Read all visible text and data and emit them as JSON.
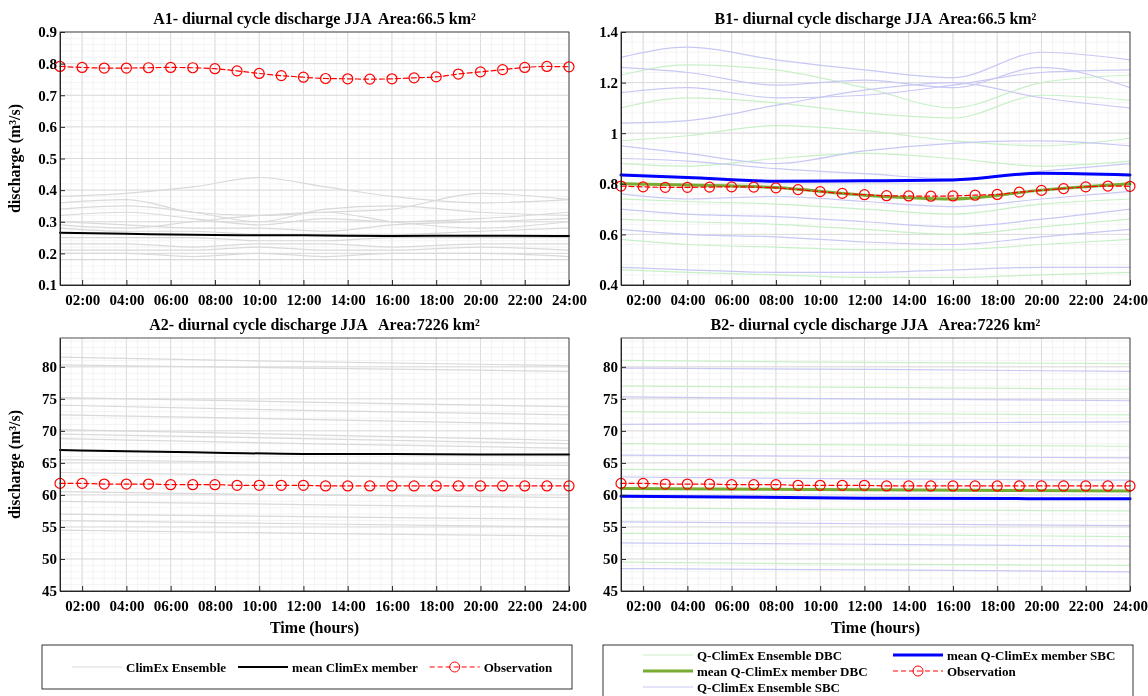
{
  "chart_data": [
    {
      "type": "line",
      "title": "A1- diurnal cycle discharge JJA  Area:66.5 km²",
      "ylabel": "discharge (m³/s)",
      "xlim": [
        1,
        24
      ],
      "ylim": [
        0.1,
        0.9
      ],
      "xticks": [
        {
          "value": 2,
          "label": "02:00"
        },
        {
          "value": 4,
          "label": "04:00"
        },
        {
          "value": 6,
          "label": "06:00"
        },
        {
          "value": 8,
          "label": "08:00"
        },
        {
          "value": 10,
          "label": "10:00"
        },
        {
          "value": 12,
          "label": "12:00"
        },
        {
          "value": 14,
          "label": "14:00"
        },
        {
          "value": 16,
          "label": "16:00"
        },
        {
          "value": 18,
          "label": "18:00"
        },
        {
          "value": 20,
          "label": "20:00"
        },
        {
          "value": 22,
          "label": "22:00"
        },
        {
          "value": 24,
          "label": "24:00"
        }
      ],
      "yticks": [
        0.1,
        0.2,
        0.3,
        0.4,
        0.5,
        0.6,
        0.7,
        0.8,
        0.9
      ],
      "grid": true,
      "legend": false,
      "series": [
        {
          "color": "#d9d9d9",
          "x": [
            1,
            4,
            7,
            10,
            13,
            16,
            20,
            24
          ],
          "values": [
            0.38,
            0.39,
            0.41,
            0.44,
            0.41,
            0.38,
            0.36,
            0.37
          ]
        },
        {
          "color": "#d9d9d9",
          "x": [
            1,
            4,
            7,
            10,
            13,
            16,
            20,
            24
          ],
          "values": [
            0.36,
            0.37,
            0.33,
            0.32,
            0.33,
            0.34,
            0.39,
            0.37
          ]
        },
        {
          "color": "#d9d9d9",
          "x": [
            1,
            4,
            7,
            10,
            13,
            16,
            20,
            24
          ],
          "values": [
            0.34,
            0.35,
            0.33,
            0.3,
            0.34,
            0.35,
            0.33,
            0.32
          ]
        },
        {
          "color": "#d9d9d9",
          "x": [
            1,
            4,
            7,
            10,
            13,
            16,
            20,
            24
          ],
          "values": [
            0.32,
            0.33,
            0.31,
            0.29,
            0.31,
            0.3,
            0.31,
            0.33
          ]
        },
        {
          "color": "#d9d9d9",
          "x": [
            1,
            4,
            7,
            10,
            13,
            16,
            20,
            24
          ],
          "values": [
            0.3,
            0.29,
            0.28,
            0.28,
            0.27,
            0.29,
            0.3,
            0.31
          ]
        },
        {
          "color": "#d9d9d9",
          "x": [
            1,
            4,
            7,
            10,
            13,
            16,
            20,
            24
          ],
          "values": [
            0.29,
            0.28,
            0.3,
            0.32,
            0.33,
            0.3,
            0.28,
            0.3
          ]
        },
        {
          "color": "#d9d9d9",
          "x": [
            1,
            4,
            7,
            10,
            13,
            16,
            20,
            24
          ],
          "values": [
            0.28,
            0.27,
            0.27,
            0.26,
            0.26,
            0.26,
            0.27,
            0.28
          ]
        },
        {
          "color": "#d9d9d9",
          "x": [
            1,
            4,
            7,
            10,
            13,
            16,
            20,
            24
          ],
          "values": [
            0.25,
            0.25,
            0.25,
            0.24,
            0.24,
            0.25,
            0.25,
            0.25
          ]
        },
        {
          "color": "#d9d9d9",
          "x": [
            1,
            4,
            7,
            10,
            13,
            16,
            20,
            24
          ],
          "values": [
            0.23,
            0.23,
            0.22,
            0.23,
            0.23,
            0.22,
            0.23,
            0.23
          ]
        },
        {
          "color": "#d9d9d9",
          "x": [
            1,
            4,
            7,
            10,
            13,
            16,
            20,
            24
          ],
          "values": [
            0.21,
            0.21,
            0.21,
            0.22,
            0.21,
            0.21,
            0.22,
            0.21
          ]
        },
        {
          "color": "#d9d9d9",
          "x": [
            1,
            4,
            7,
            10,
            13,
            16,
            20,
            24
          ],
          "values": [
            0.2,
            0.2,
            0.19,
            0.2,
            0.19,
            0.2,
            0.2,
            0.19
          ]
        },
        {
          "color": "#d9d9d9",
          "x": [
            1,
            4,
            7,
            10,
            13,
            16,
            20,
            24
          ],
          "values": [
            0.18,
            0.18,
            0.18,
            0.18,
            0.18,
            0.18,
            0.18,
            0.18
          ]
        },
        {
          "color": "#000000",
          "x": [
            1,
            4,
            8,
            12,
            16,
            20,
            24
          ],
          "values": [
            0.265,
            0.262,
            0.258,
            0.257,
            0.255,
            0.256,
            0.255
          ]
        },
        {
          "color": "#ff0000",
          "marker": "circle",
          "line_style": "dashed",
          "x": [
            1,
            2,
            3,
            4,
            5,
            6,
            7,
            8,
            9,
            10,
            11,
            12,
            13,
            14,
            15,
            16,
            17,
            18,
            19,
            20,
            21,
            22,
            23,
            24
          ],
          "values": [
            0.791,
            0.788,
            0.786,
            0.786,
            0.787,
            0.788,
            0.787,
            0.784,
            0.777,
            0.769,
            0.762,
            0.757,
            0.753,
            0.752,
            0.751,
            0.752,
            0.755,
            0.758,
            0.767,
            0.774,
            0.781,
            0.788,
            0.791,
            0.79
          ]
        }
      ]
    },
    {
      "type": "line",
      "title": "B1- diurnal cycle discharge JJA  Area:66.5 km²",
      "xlim": [
        1,
        24
      ],
      "ylim": [
        0.4,
        1.4
      ],
      "xticks": [
        {
          "value": 2,
          "label": "02:00"
        },
        {
          "value": 4,
          "label": "04:00"
        },
        {
          "value": 6,
          "label": "06:00"
        },
        {
          "value": 8,
          "label": "08:00"
        },
        {
          "value": 10,
          "label": "10:00"
        },
        {
          "value": 12,
          "label": "12:00"
        },
        {
          "value": 14,
          "label": "14:00"
        },
        {
          "value": 16,
          "label": "16:00"
        },
        {
          "value": 18,
          "label": "18:00"
        },
        {
          "value": 20,
          "label": "20:00"
        },
        {
          "value": 22,
          "label": "22:00"
        },
        {
          "value": 24,
          "label": "24:00"
        }
      ],
      "yticks": [
        0.4,
        0.6,
        0.8,
        1,
        1.2,
        1.4
      ],
      "grid": true,
      "legend": false,
      "series": [
        {
          "color": "#c8f0c8",
          "x": [
            1,
            4,
            8,
            12,
            16,
            20,
            24
          ],
          "values": [
            1.23,
            1.27,
            1.25,
            1.18,
            1.1,
            1.2,
            1.23
          ]
        },
        {
          "color": "#c8f0c8",
          "x": [
            1,
            4,
            8,
            12,
            16,
            20,
            24
          ],
          "values": [
            1.1,
            1.14,
            1.12,
            1.08,
            1.06,
            1.15,
            1.13
          ]
        },
        {
          "color": "#c8f0c8",
          "x": [
            1,
            4,
            8,
            12,
            16,
            20,
            24
          ],
          "values": [
            0.97,
            0.99,
            1.03,
            1.01,
            0.97,
            0.95,
            0.98
          ]
        },
        {
          "color": "#c8f0c8",
          "x": [
            1,
            4,
            8,
            12,
            16,
            20,
            24
          ],
          "values": [
            0.88,
            0.87,
            0.9,
            0.92,
            0.9,
            0.87,
            0.89
          ]
        },
        {
          "color": "#c8f0c8",
          "x": [
            1,
            4,
            8,
            12,
            16,
            20,
            24
          ],
          "values": [
            0.74,
            0.73,
            0.72,
            0.7,
            0.68,
            0.72,
            0.74
          ]
        },
        {
          "color": "#c8f0c8",
          "x": [
            1,
            4,
            8,
            12,
            16,
            20,
            24
          ],
          "values": [
            0.66,
            0.65,
            0.64,
            0.62,
            0.6,
            0.63,
            0.66
          ]
        },
        {
          "color": "#c8f0c8",
          "x": [
            1,
            4,
            8,
            12,
            16,
            20,
            24
          ],
          "values": [
            0.58,
            0.56,
            0.55,
            0.54,
            0.54,
            0.56,
            0.58
          ]
        },
        {
          "color": "#c8f0c8",
          "x": [
            1,
            4,
            8,
            12,
            16,
            20,
            24
          ],
          "values": [
            0.46,
            0.45,
            0.44,
            0.43,
            0.43,
            0.44,
            0.45
          ]
        },
        {
          "color": "#c8c8f5",
          "x": [
            1,
            4,
            8,
            12,
            16,
            20,
            24
          ],
          "values": [
            1.3,
            1.34,
            1.29,
            1.25,
            1.22,
            1.32,
            1.29
          ]
        },
        {
          "color": "#c8c8f5",
          "x": [
            1,
            4,
            8,
            12,
            16,
            20,
            24
          ],
          "values": [
            1.26,
            1.24,
            1.19,
            1.21,
            1.18,
            1.26,
            1.18
          ]
        },
        {
          "color": "#c8c8f5",
          "x": [
            1,
            4,
            8,
            12,
            16,
            20,
            24
          ],
          "values": [
            1.16,
            1.18,
            1.14,
            1.15,
            1.19,
            1.24,
            1.25
          ]
        },
        {
          "color": "#c8c8f5",
          "x": [
            1,
            4,
            8,
            12,
            16,
            20,
            24
          ],
          "values": [
            1.04,
            1.05,
            1.11,
            1.17,
            1.2,
            1.14,
            1.1
          ]
        },
        {
          "color": "#c8c8f5",
          "x": [
            1,
            4,
            8,
            12,
            16,
            20,
            24
          ],
          "values": [
            0.95,
            0.92,
            0.88,
            0.93,
            0.96,
            0.97,
            0.95
          ]
        },
        {
          "color": "#c8c8f5",
          "x": [
            1,
            4,
            8,
            12,
            16,
            20,
            24
          ],
          "values": [
            0.9,
            0.89,
            0.86,
            0.84,
            0.82,
            0.85,
            0.88
          ]
        },
        {
          "color": "#c8c8f5",
          "x": [
            1,
            4,
            8,
            12,
            16,
            20,
            24
          ],
          "values": [
            0.76,
            0.74,
            0.75,
            0.73,
            0.71,
            0.74,
            0.77
          ]
        },
        {
          "color": "#c8c8f5",
          "x": [
            1,
            4,
            8,
            12,
            16,
            20,
            24
          ],
          "values": [
            0.7,
            0.68,
            0.67,
            0.65,
            0.63,
            0.66,
            0.7
          ]
        },
        {
          "color": "#c8c8f5",
          "x": [
            1,
            4,
            8,
            12,
            16,
            20,
            24
          ],
          "values": [
            0.62,
            0.6,
            0.59,
            0.57,
            0.56,
            0.59,
            0.62
          ]
        },
        {
          "color": "#c8c8f5",
          "x": [
            1,
            4,
            8,
            12,
            16,
            20,
            24
          ],
          "values": [
            0.47,
            0.46,
            0.45,
            0.45,
            0.46,
            0.47,
            0.47
          ]
        },
        {
          "color": "#77ac30",
          "x": [
            1,
            4,
            8,
            12,
            16,
            20,
            24
          ],
          "values": [
            0.8,
            0.795,
            0.785,
            0.755,
            0.74,
            0.775,
            0.8
          ]
        },
        {
          "color": "#0000ff",
          "x": [
            1,
            4,
            8,
            12,
            16,
            20,
            24
          ],
          "values": [
            0.835,
            0.825,
            0.81,
            0.812,
            0.815,
            0.842,
            0.835
          ]
        },
        {
          "color": "#ff0000",
          "marker": "circle",
          "line_style": "dashed",
          "x": [
            1,
            2,
            3,
            4,
            5,
            6,
            7,
            8,
            9,
            10,
            11,
            12,
            13,
            14,
            15,
            16,
            17,
            18,
            19,
            20,
            21,
            22,
            23,
            24
          ],
          "values": [
            0.791,
            0.788,
            0.786,
            0.786,
            0.787,
            0.788,
            0.787,
            0.784,
            0.777,
            0.769,
            0.762,
            0.757,
            0.753,
            0.752,
            0.751,
            0.752,
            0.755,
            0.758,
            0.767,
            0.774,
            0.781,
            0.788,
            0.791,
            0.79
          ]
        }
      ]
    },
    {
      "type": "line",
      "title": "A2- diurnal cycle discharge JJA   Area:7226 km²",
      "xlabel": "Time (hours)",
      "ylabel": "discharge (m³/s)",
      "xlim": [
        1,
        24
      ],
      "ylim": [
        45,
        84.5
      ],
      "xticks": [
        {
          "value": 2,
          "label": "02:00"
        },
        {
          "value": 4,
          "label": "04:00"
        },
        {
          "value": 6,
          "label": "06:00"
        },
        {
          "value": 8,
          "label": "08:00"
        },
        {
          "value": 10,
          "label": "10:00"
        },
        {
          "value": 12,
          "label": "12:00"
        },
        {
          "value": 14,
          "label": "14:00"
        },
        {
          "value": 16,
          "label": "16:00"
        },
        {
          "value": 18,
          "label": "18:00"
        },
        {
          "value": 20,
          "label": "20:00"
        },
        {
          "value": 22,
          "label": "22:00"
        },
        {
          "value": 24,
          "label": "24:00"
        }
      ],
      "yticks": [
        45,
        50,
        55,
        60,
        65,
        70,
        75,
        80
      ],
      "grid": true,
      "legend": "bottom",
      "series": [
        {
          "name": "ClimEx Ensemble",
          "color": "#d9d9d9",
          "x": [
            1,
            12,
            24
          ],
          "values": [
            81.5,
            80.8,
            80.2
          ]
        },
        {
          "color": "#d9d9d9",
          "x": [
            1,
            12,
            24
          ],
          "values": [
            80.3,
            79.8,
            79.3
          ]
        },
        {
          "color": "#d9d9d9",
          "x": [
            1,
            12,
            24
          ],
          "values": [
            75.2,
            74.5,
            73.8
          ]
        },
        {
          "color": "#d9d9d9",
          "x": [
            1,
            12,
            24
          ],
          "values": [
            74,
            73.2,
            72.5
          ]
        },
        {
          "color": "#d9d9d9",
          "x": [
            1,
            12,
            24
          ],
          "values": [
            72.5,
            71.8,
            71
          ]
        },
        {
          "color": "#d9d9d9",
          "x": [
            1,
            12,
            24
          ],
          "values": [
            70.2,
            69.4,
            68.5
          ]
        },
        {
          "color": "#d9d9d9",
          "x": [
            1,
            12,
            24
          ],
          "values": [
            69.5,
            68.8,
            68
          ]
        },
        {
          "color": "#d9d9d9",
          "x": [
            1,
            12,
            24
          ],
          "values": [
            68.8,
            68,
            67.3
          ]
        },
        {
          "color": "#d9d9d9",
          "x": [
            1,
            12,
            24
          ],
          "values": [
            65.5,
            65,
            64.6
          ]
        },
        {
          "color": "#d9d9d9",
          "x": [
            1,
            12,
            24
          ],
          "values": [
            63.5,
            63,
            62.5
          ]
        },
        {
          "color": "#d9d9d9",
          "x": [
            1,
            12,
            24
          ],
          "values": [
            60.5,
            60,
            59.6
          ]
        },
        {
          "color": "#d9d9d9",
          "x": [
            1,
            12,
            24
          ],
          "values": [
            59,
            58.5,
            58
          ]
        },
        {
          "color": "#d9d9d9",
          "x": [
            1,
            12,
            24
          ],
          "values": [
            57,
            56.6,
            56.2
          ]
        },
        {
          "color": "#d9d9d9",
          "x": [
            1,
            12,
            24
          ],
          "values": [
            56,
            55.5,
            55
          ]
        },
        {
          "color": "#d9d9d9",
          "x": [
            1,
            12,
            24
          ],
          "values": [
            54.5,
            54,
            53.6
          ]
        },
        {
          "name": "mean ClimEx member",
          "color": "#000000",
          "x": [
            1,
            4,
            8,
            12,
            16,
            20,
            24
          ],
          "values": [
            67,
            66.8,
            66.6,
            66.4,
            66.4,
            66.3,
            66.3
          ]
        },
        {
          "name": "Observation",
          "color": "#ff0000",
          "marker": "circle",
          "line_style": "dashed",
          "x": [
            1,
            2,
            3,
            4,
            5,
            6,
            7,
            8,
            9,
            10,
            11,
            12,
            13,
            14,
            15,
            16,
            17,
            18,
            19,
            20,
            21,
            22,
            23,
            24
          ],
          "values": [
            61.8,
            61.8,
            61.7,
            61.7,
            61.7,
            61.6,
            61.6,
            61.6,
            61.5,
            61.5,
            61.5,
            61.5,
            61.4,
            61.4,
            61.4,
            61.4,
            61.4,
            61.4,
            61.4,
            61.4,
            61.4,
            61.4,
            61.4,
            61.4
          ]
        }
      ]
    },
    {
      "type": "line",
      "title": "B2- diurnal cycle discharge JJA   Area:7226 km²",
      "xlabel": "Time (hours)",
      "xlim": [
        1,
        24
      ],
      "ylim": [
        45,
        84.5
      ],
      "xticks": [
        {
          "value": 2,
          "label": "02:00"
        },
        {
          "value": 4,
          "label": "04:00"
        },
        {
          "value": 6,
          "label": "06:00"
        },
        {
          "value": 8,
          "label": "08:00"
        },
        {
          "value": 10,
          "label": "10:00"
        },
        {
          "value": 12,
          "label": "12:00"
        },
        {
          "value": 14,
          "label": "14:00"
        },
        {
          "value": 16,
          "label": "16:00"
        },
        {
          "value": 18,
          "label": "18:00"
        },
        {
          "value": 20,
          "label": "20:00"
        },
        {
          "value": 22,
          "label": "22:00"
        },
        {
          "value": 24,
          "label": "24:00"
        }
      ],
      "yticks": [
        45,
        50,
        55,
        60,
        65,
        70,
        75,
        80
      ],
      "grid": true,
      "legend": "bottom",
      "series": [
        {
          "name": "Q-ClimEx Ensemble DBC",
          "color": "#c8f0c8",
          "x": [
            1,
            12,
            24
          ],
          "values": [
            81,
            80.7,
            80.5
          ]
        },
        {
          "color": "#c8f0c8",
          "x": [
            1,
            12,
            24
          ],
          "values": [
            77,
            76.8,
            76.5
          ]
        },
        {
          "color": "#c8f0c8",
          "x": [
            1,
            12,
            24
          ],
          "values": [
            73,
            72.7,
            72.5
          ]
        },
        {
          "color": "#c8f0c8",
          "x": [
            1,
            12,
            24
          ],
          "values": [
            68,
            67.8,
            67.6
          ]
        },
        {
          "color": "#c8f0c8",
          "x": [
            1,
            12,
            24
          ],
          "values": [
            64,
            63.7,
            63.5
          ]
        },
        {
          "color": "#c8f0c8",
          "x": [
            1,
            12,
            24
          ],
          "values": [
            58,
            57.7,
            57.5
          ]
        },
        {
          "color": "#c8f0c8",
          "x": [
            1,
            12,
            24
          ],
          "values": [
            54,
            53.8,
            53.5
          ]
        },
        {
          "color": "#c8f0c8",
          "x": [
            1,
            12,
            24
          ],
          "values": [
            49.5,
            49.2,
            49
          ]
        },
        {
          "name": "mean Q-ClimEx member DBC",
          "color": "#77ac30",
          "x": [
            1,
            12,
            24
          ],
          "values": [
            61,
            60.8,
            60.6
          ]
        },
        {
          "name": "Q-ClimEx Ensemble SBC",
          "color": "#c8c8f5",
          "x": [
            1,
            12,
            24
          ],
          "values": [
            79.8,
            79.6,
            79.3
          ]
        },
        {
          "color": "#c8c8f5",
          "x": [
            1,
            12,
            24
          ],
          "values": [
            75.3,
            75,
            74.7
          ]
        },
        {
          "color": "#c8c8f5",
          "x": [
            1,
            12,
            24
          ],
          "values": [
            71,
            71.2,
            71.4
          ]
        },
        {
          "color": "#c8c8f5",
          "x": [
            1,
            12,
            24
          ],
          "values": [
            66.2,
            66,
            65.8
          ]
        },
        {
          "color": "#c8c8f5",
          "x": [
            1,
            12,
            24
          ],
          "values": [
            62.8,
            62.5,
            62.3
          ]
        },
        {
          "color": "#c8c8f5",
          "x": [
            1,
            12,
            24
          ],
          "values": [
            55.8,
            55.5,
            55.2
          ]
        },
        {
          "color": "#c8c8f5",
          "x": [
            1,
            12,
            24
          ],
          "values": [
            52.5,
            52.3,
            52
          ]
        },
        {
          "color": "#c8c8f5",
          "x": [
            1,
            12,
            24
          ],
          "values": [
            48.5,
            48.3,
            48
          ]
        },
        {
          "name": "mean Q-ClimEx member SBC",
          "color": "#0000ff",
          "x": [
            1,
            12,
            24
          ],
          "values": [
            59.8,
            59.5,
            59.4
          ]
        },
        {
          "name": "Observation",
          "color": "#ff0000",
          "marker": "circle",
          "line_style": "dashed",
          "x": [
            1,
            2,
            3,
            4,
            5,
            6,
            7,
            8,
            9,
            10,
            11,
            12,
            13,
            14,
            15,
            16,
            17,
            18,
            19,
            20,
            21,
            22,
            23,
            24
          ],
          "values": [
            61.8,
            61.8,
            61.7,
            61.7,
            61.7,
            61.6,
            61.6,
            61.6,
            61.5,
            61.5,
            61.5,
            61.5,
            61.4,
            61.4,
            61.4,
            61.4,
            61.4,
            61.4,
            61.4,
            61.4,
            61.4,
            61.4,
            61.4,
            61.4
          ]
        }
      ]
    }
  ]
}
